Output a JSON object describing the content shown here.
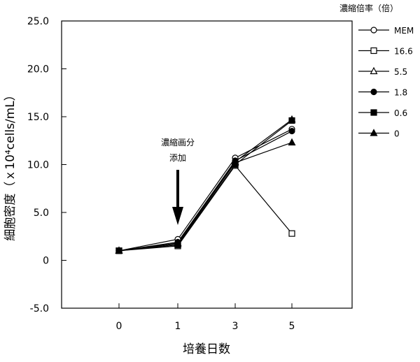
{
  "chart_data": {
    "type": "line",
    "title": "",
    "xlabel": "培養日数",
    "ylabel": "細胞密度（ｘ10⁴cells/mL）",
    "x_categories": [
      "0",
      "1",
      "3",
      "5"
    ],
    "y_ticks": [
      "-5.0",
      "0",
      "5.0",
      "10.0",
      "15.0",
      "20.0",
      "25.0"
    ],
    "ylim": [
      -5.0,
      25.0
    ],
    "grid": false,
    "legend_title": "濃縮倍率（倍）",
    "legend_position": "right",
    "series": [
      {
        "name": "MEM",
        "marker": "circle-open",
        "values": [
          1.0,
          2.2,
          10.7,
          13.7
        ]
      },
      {
        "name": "16.6",
        "marker": "square-open",
        "values": [
          1.0,
          1.5,
          9.9,
          2.8
        ]
      },
      {
        "name": "5.5",
        "marker": "triangle-open",
        "values": [
          1.0,
          1.8,
          10.3,
          14.7
        ]
      },
      {
        "name": "1.8",
        "marker": "circle-filled",
        "values": [
          1.0,
          1.9,
          10.4,
          13.5
        ]
      },
      {
        "name": "0.6",
        "marker": "square-filled",
        "values": [
          1.0,
          1.6,
          10.0,
          14.6
        ]
      },
      {
        "name": "0",
        "marker": "triangle-filled",
        "values": [
          1.0,
          1.7,
          10.2,
          12.3
        ]
      }
    ],
    "annotation": {
      "line1": "濃縮画分",
      "line2": "添加",
      "at_x": "1"
    }
  }
}
